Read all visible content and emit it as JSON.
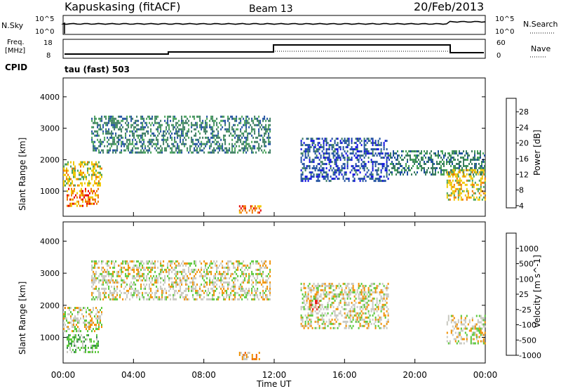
{
  "header": {
    "station": "Kapuskasing (fitACF)",
    "beam": "Beam 13",
    "date": "20/Feb/2013"
  },
  "noise_panel": {
    "left_label": "N.Sky",
    "left_ticks": [
      "10^5",
      "10^0"
    ],
    "right_ticks": [
      "10^5",
      "10^0"
    ],
    "right_label": "N.Search"
  },
  "freq_panel": {
    "left_label_line1": "Freq.",
    "left_label_line2": "[MHz]",
    "left_ticks": [
      "18",
      "8"
    ],
    "right_ticks": [
      "60",
      "0"
    ],
    "right_label": "Nave",
    "cpid_label": "CPID",
    "cpid_text": "tau (fast) 503"
  },
  "chart_data": [
    {
      "type": "heatmap",
      "panel": "power",
      "ylabel": "Slant Range [km]",
      "xlabel": "",
      "ylim": [
        200,
        4600
      ],
      "y_ticks": [
        1000,
        2000,
        3000,
        4000
      ],
      "x_ticks": [
        0,
        4,
        8,
        12,
        16,
        20,
        24
      ],
      "colorbar_label": "Power [dB]",
      "colorbar_ticks": [
        "28",
        "24",
        "20",
        "16",
        "12",
        "8",
        "4"
      ],
      "colors": [
        "#1010e0",
        "#2050a0",
        "#3d7e62",
        "#49a35a",
        "#f0c800",
        "#f07800",
        "#e80000"
      ],
      "regions": [
        {
          "x": [
            0,
            2.2
          ],
          "y": [
            1200,
            1950
          ],
          "level": 4
        },
        {
          "x": [
            0.2,
            2.0
          ],
          "y": [
            550,
            1100
          ],
          "level": 5
        },
        {
          "x": [
            1.6,
            11.8
          ],
          "y": [
            2200,
            3400
          ],
          "level": 2
        },
        {
          "x": [
            10.0,
            11.2
          ],
          "y": [
            300,
            550
          ],
          "level": 5
        },
        {
          "x": [
            13.5,
            18.5
          ],
          "y": [
            1300,
            2700
          ],
          "level": 1
        },
        {
          "x": [
            18.5,
            24
          ],
          "y": [
            1500,
            2300
          ],
          "level": 2
        },
        {
          "x": [
            21.8,
            24
          ],
          "y": [
            700,
            1700
          ],
          "level": 4
        }
      ]
    },
    {
      "type": "heatmap",
      "panel": "velocity",
      "ylabel": "Slant Range [km]",
      "xlabel": "Time UT",
      "ylim": [
        200,
        4600
      ],
      "y_ticks": [
        1000,
        2000,
        3000,
        4000
      ],
      "x_ticks": [
        "00:00",
        "04:00",
        "08:00",
        "12:00",
        "16:00",
        "20:00",
        "00:00"
      ],
      "colorbar_label": "Velocity [m s^-1]",
      "colorbar_ticks": [
        "1000",
        "500",
        "100",
        "25",
        "-25",
        "-100",
        "-500",
        "-1000"
      ],
      "colors": [
        "#2040c0",
        "#3060a0",
        "#3a8a50",
        "#58c838",
        "#c8c8c0",
        "#f09000",
        "#f06000",
        "#e80000"
      ],
      "regions": [
        {
          "x": [
            0,
            2.2
          ],
          "y": [
            1200,
            1950
          ],
          "level": 4
        },
        {
          "x": [
            0.2,
            2.0
          ],
          "y": [
            550,
            1100
          ],
          "level": 3
        },
        {
          "x": [
            1.6,
            11.8
          ],
          "y": [
            2200,
            3400
          ],
          "level": 4
        },
        {
          "x": [
            10.0,
            11.2
          ],
          "y": [
            300,
            550
          ],
          "level": 5
        },
        {
          "x": [
            14.0,
            14.6
          ],
          "y": [
            1900,
            2300
          ],
          "level": 7
        },
        {
          "x": [
            13.5,
            18.5
          ],
          "y": [
            1300,
            2700
          ],
          "level": 4
        },
        {
          "x": [
            21.8,
            24
          ],
          "y": [
            800,
            1700
          ],
          "level": 4
        }
      ]
    }
  ]
}
